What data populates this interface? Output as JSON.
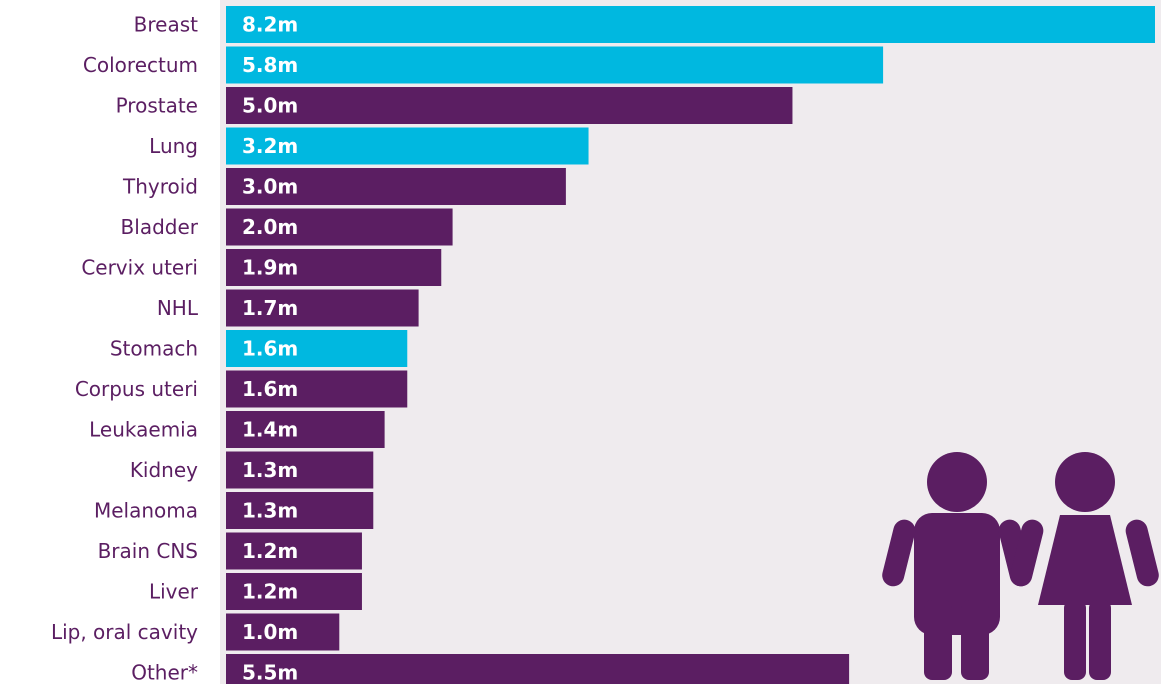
{
  "chart_data": {
    "type": "bar",
    "orientation": "horizontal",
    "categories": [
      "Breast",
      "Colorectum",
      "Prostate",
      "Lung",
      "Thyroid",
      "Bladder",
      "Cervix uteri",
      "NHL",
      "Stomach",
      "Corpus uteri",
      "Leukaemia",
      "Kidney",
      "Melanoma",
      "Brain CNS",
      "Liver",
      "Lip, oral cavity",
      "Other*"
    ],
    "values": [
      8.2,
      5.8,
      5.0,
      3.2,
      3.0,
      2.0,
      1.9,
      1.7,
      1.6,
      1.6,
      1.4,
      1.3,
      1.3,
      1.2,
      1.2,
      1.0,
      5.5
    ],
    "value_labels": [
      "8.2m",
      "5.8m",
      "5.0m",
      "3.2m",
      "3.0m",
      "2.0m",
      "1.9m",
      "1.7m",
      "1.6m",
      "1.6m",
      "1.4m",
      "1.3m",
      "1.3m",
      "1.2m",
      "1.2m",
      "1.0m",
      "5.5m"
    ],
    "bar_group": [
      "both",
      "both",
      "male",
      "both",
      "male",
      "male",
      "male",
      "male",
      "both",
      "male",
      "male",
      "male",
      "male",
      "male",
      "male",
      "male",
      "male"
    ],
    "xlim": [
      0,
      8.2
    ],
    "grid": false,
    "legend": "none"
  },
  "colors": {
    "both": "#00b8e0",
    "male": "#5b1e62",
    "label": "#5b1e62",
    "panel": "#efebee",
    "value_text": "#ffffff"
  },
  "icons": [
    "male-figure-icon",
    "female-figure-icon"
  ]
}
